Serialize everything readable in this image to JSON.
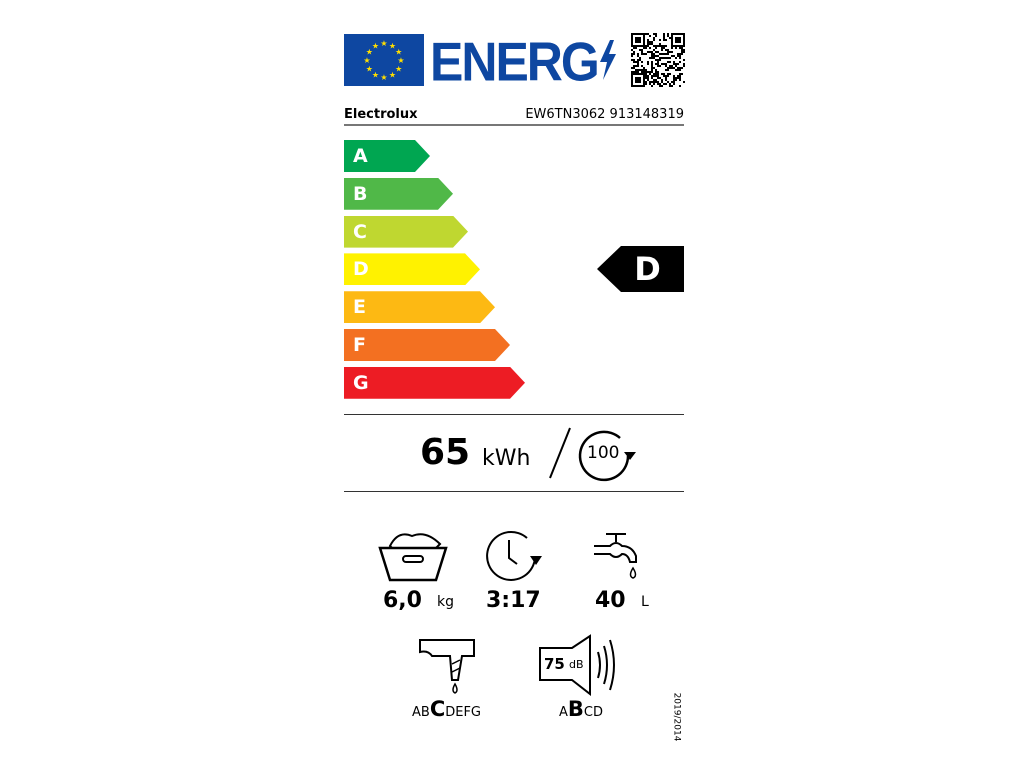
{
  "header": {
    "logo_text": "ENERG",
    "icons": [
      "eu-flag-icon",
      "lightning-icon",
      "qr-code-icon"
    ]
  },
  "supplier": "Electrolux",
  "model": "EW6TN3062 913148319",
  "scale": [
    {
      "label": "A",
      "color": "#00a651"
    },
    {
      "label": "B",
      "color": "#50b848"
    },
    {
      "label": "C",
      "color": "#bfd730"
    },
    {
      "label": "D",
      "color": "#fff200"
    },
    {
      "label": "E",
      "color": "#fdb913"
    },
    {
      "label": "F",
      "color": "#f37021"
    },
    {
      "label": "G",
      "color": "#ed1c24"
    }
  ],
  "energy_class": "D",
  "energy": {
    "value": "65",
    "unit": "kWh",
    "per": "100"
  },
  "capacity": {
    "value": "6,0",
    "unit": "kg"
  },
  "duration": {
    "value": "3:17"
  },
  "water": {
    "value": "40",
    "unit": "L"
  },
  "spin": {
    "pre": "AB",
    "class": "C",
    "post": "DEFG"
  },
  "noise": {
    "value": "75",
    "unit": "dB",
    "pre": "A",
    "class": "B",
    "post": "CD"
  },
  "regulation": "2019/2014"
}
